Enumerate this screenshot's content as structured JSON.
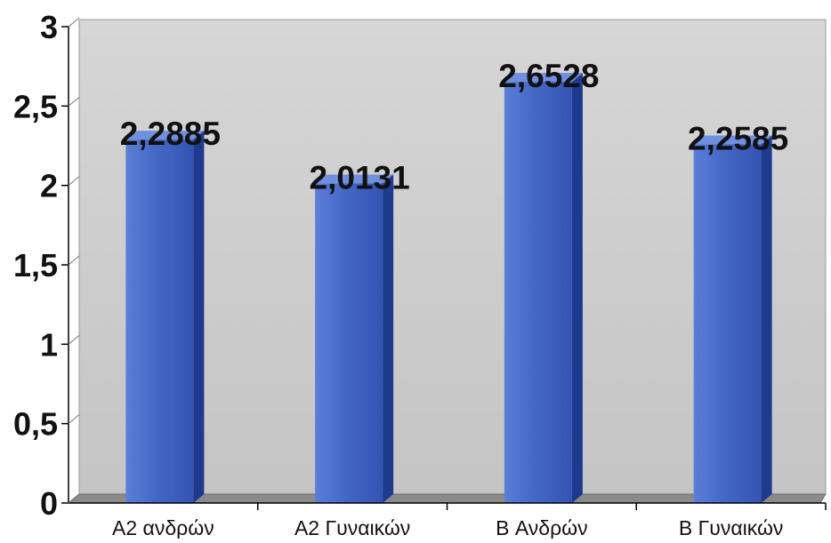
{
  "chart_data": {
    "type": "bar",
    "categories": [
      "A2 ανδρών",
      "A2 Γυναικών",
      "B Ανδρών",
      "B Γυναικών"
    ],
    "values": [
      2.2885,
      2.0131,
      2.6528,
      2.2585
    ],
    "data_labels": [
      "2,2885",
      "2,0131",
      "2,6528",
      "2,2585"
    ],
    "y_ticks": [
      0,
      0.5,
      1,
      1.5,
      2,
      2.5,
      3
    ],
    "y_tick_labels": [
      "0",
      "0,5",
      "1",
      "1,5",
      "2",
      "2,5",
      "3"
    ],
    "title": "",
    "xlabel": "",
    "ylabel": "",
    "ylim": [
      0,
      3
    ],
    "grid": false,
    "legend": "none",
    "colors": {
      "bar_front": "#3f63c4",
      "bar_side": "#1e3a8f",
      "bar_top": "#6f8fe0",
      "plot_background": "#cdcdcd",
      "floor": "#8a8a8a",
      "axis": "#000000",
      "label": "#111111"
    }
  }
}
